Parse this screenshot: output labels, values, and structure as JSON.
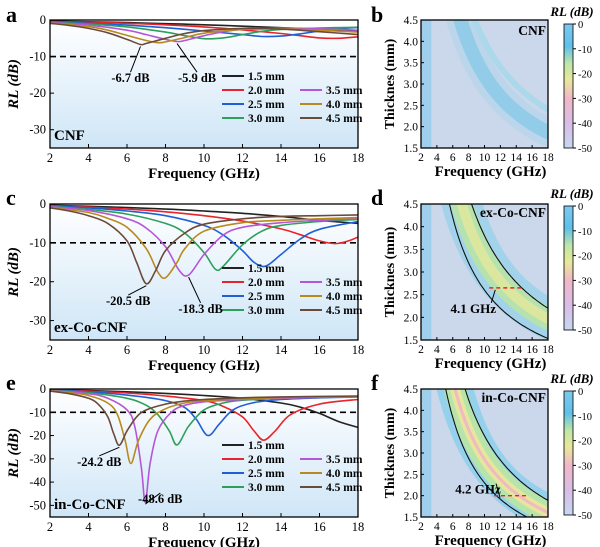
{
  "chart_data": [
    {
      "type": "line",
      "panel": "a",
      "label": "CNF",
      "xlabel": "Frequency (GHz)",
      "ylabel": "RL (dB)",
      "xlim": [
        2,
        18
      ],
      "ylim": [
        -35,
        0
      ],
      "xticks": [
        2,
        4,
        6,
        8,
        10,
        12,
        14,
        16,
        18
      ],
      "yticks": [
        0,
        -10,
        -20,
        -30
      ],
      "reference_line": -10,
      "annotations": [
        "-6.7 dB",
        "-5.9 dB"
      ],
      "legend": [
        "1.5 mm",
        "2.0 mm",
        "2.5 mm",
        "3.0 mm",
        "3.5 mm",
        "4.0 mm",
        "4.5 mm"
      ],
      "series": [
        {
          "name": "1.5 mm",
          "color": "#222222",
          "x": [
            2,
            4,
            6,
            8,
            10,
            12,
            14,
            16,
            17,
            18
          ],
          "y": [
            -0.3,
            -0.5,
            -0.7,
            -1.0,
            -1.3,
            -1.7,
            -2.1,
            -2.6,
            -2.9,
            -3.1
          ]
        },
        {
          "name": "2.0 mm",
          "color": "#e8242a",
          "x": [
            2,
            4,
            6,
            8,
            10,
            12,
            14,
            15,
            16,
            17,
            18
          ],
          "y": [
            -0.4,
            -0.6,
            -0.9,
            -1.3,
            -1.9,
            -2.7,
            -3.7,
            -4.3,
            -4.9,
            -5.0,
            -4.6
          ]
        },
        {
          "name": "2.5 mm",
          "color": "#1f5fd6",
          "x": [
            2,
            4,
            6,
            8,
            10,
            12,
            13,
            14,
            15,
            16,
            17,
            18
          ],
          "y": [
            -0.5,
            -0.9,
            -1.4,
            -2.1,
            -3.0,
            -4.0,
            -4.5,
            -4.4,
            -3.8,
            -3.0,
            -2.4,
            -2.0
          ]
        },
        {
          "name": "3.0 mm",
          "color": "#2ca05a",
          "x": [
            2,
            4,
            6,
            8,
            9,
            10,
            11,
            12,
            13,
            14,
            16,
            18
          ],
          "y": [
            -0.6,
            -1.1,
            -1.9,
            -3.3,
            -4.3,
            -5.1,
            -4.9,
            -4.0,
            -3.1,
            -2.6,
            -2.2,
            -2.0
          ]
        },
        {
          "name": "3.5 mm",
          "color": "#b556d6",
          "x": [
            2,
            4,
            6,
            7,
            8,
            8.6,
            9,
            10,
            11,
            12,
            14,
            16,
            18
          ],
          "y": [
            -0.7,
            -1.4,
            -2.8,
            -4.0,
            -5.3,
            -5.9,
            -5.6,
            -4.3,
            -3.2,
            -2.6,
            -2.2,
            -2.4,
            -2.8
          ]
        },
        {
          "name": "4.0 mm",
          "color": "#b88a1e",
          "x": [
            2,
            4,
            5,
            6,
            7,
            7.6,
            8,
            9,
            10,
            12,
            14,
            16,
            18
          ],
          "y": [
            -0.8,
            -1.8,
            -2.8,
            -4.2,
            -5.6,
            -6.2,
            -6.0,
            -4.8,
            -3.6,
            -2.6,
            -2.4,
            -2.8,
            -3.3
          ]
        },
        {
          "name": "4.5 mm",
          "color": "#6b4a3a",
          "x": [
            2,
            3,
            4,
            5,
            6,
            6.7,
            7,
            8,
            9,
            10,
            12,
            14,
            16,
            18
          ],
          "y": [
            -0.9,
            -1.5,
            -2.3,
            -3.5,
            -5.3,
            -6.7,
            -6.4,
            -5.0,
            -3.7,
            -2.9,
            -2.3,
            -2.5,
            -3.2,
            -4.0
          ]
        }
      ]
    },
    {
      "type": "heatmap",
      "panel": "b",
      "label": "CNF",
      "colorbar_title": "RL (dB)",
      "xlabel": "Frequency (GHz)",
      "ylabel": "Thicknes (mm)",
      "xlim": [
        2,
        18
      ],
      "ylim": [
        1.5,
        4.5
      ],
      "xticks": [
        2,
        4,
        6,
        8,
        10,
        12,
        14,
        16,
        18
      ],
      "yticks": [
        1.5,
        2.0,
        2.5,
        3.0,
        3.5,
        4.0,
        4.5
      ],
      "colorbar_ticks": [
        0,
        -10,
        -20,
        -30,
        -40,
        -50
      ]
    },
    {
      "type": "line",
      "panel": "c",
      "label": "ex-Co-CNF",
      "xlabel": "Frequency (GHz)",
      "ylabel": "RL (dB)",
      "xlim": [
        2,
        18
      ],
      "ylim": [
        -35,
        0
      ],
      "xticks": [
        2,
        4,
        6,
        8,
        10,
        12,
        14,
        16,
        18
      ],
      "yticks": [
        0,
        -10,
        -20,
        -30
      ],
      "reference_line": -10,
      "annotations": [
        "-20.5 dB",
        "-18.3 dB"
      ],
      "legend": [
        "1.5 mm",
        "2.0 mm",
        "2.5 mm",
        "3.0 mm",
        "3.5 mm",
        "4.0 mm",
        "4.5 mm"
      ],
      "series": [
        {
          "name": "1.5 mm",
          "color": "#222222",
          "x": [
            2,
            4,
            6,
            8,
            10,
            12,
            14,
            16,
            18
          ],
          "y": [
            -0.3,
            -0.6,
            -0.9,
            -1.3,
            -1.8,
            -2.4,
            -3.2,
            -4.2,
            -5.0
          ]
        },
        {
          "name": "2.0 mm",
          "color": "#e8242a",
          "x": [
            2,
            4,
            6,
            8,
            10,
            12,
            14,
            15,
            16,
            16.8,
            17.5,
            18
          ],
          "y": [
            -0.4,
            -0.8,
            -1.3,
            -2.0,
            -3.0,
            -4.4,
            -6.4,
            -7.9,
            -9.5,
            -10.2,
            -9.5,
            -8.5
          ]
        },
        {
          "name": "2.5 mm",
          "color": "#1f5fd6",
          "x": [
            2,
            4,
            6,
            8,
            10,
            11,
            12,
            12.6,
            13.2,
            14,
            15,
            16,
            18
          ],
          "y": [
            -0.5,
            -1.0,
            -1.8,
            -3.0,
            -5.5,
            -8.0,
            -12.0,
            -15.0,
            -16.0,
            -13.0,
            -9.0,
            -6.5,
            -4.5
          ]
        },
        {
          "name": "3.0 mm",
          "color": "#2ca05a",
          "x": [
            2,
            4,
            6,
            8,
            9,
            10,
            10.6,
            11,
            12,
            13,
            14,
            16,
            18
          ],
          "y": [
            -0.6,
            -1.4,
            -2.6,
            -5.0,
            -7.5,
            -12.5,
            -16.8,
            -16.0,
            -10.5,
            -7.0,
            -5.5,
            -4.5,
            -4.0
          ]
        },
        {
          "name": "3.5 mm",
          "color": "#b556d6",
          "x": [
            2,
            4,
            6,
            7,
            8,
            8.7,
            9.2,
            10,
            11,
            12,
            14,
            16,
            18
          ],
          "y": [
            -0.7,
            -1.7,
            -3.8,
            -6.2,
            -11.0,
            -17.0,
            -18.3,
            -13.0,
            -8.0,
            -6.0,
            -4.8,
            -4.2,
            -3.8
          ]
        },
        {
          "name": "4.0 mm",
          "color": "#b88a1e",
          "x": [
            2,
            4,
            5,
            6,
            7,
            7.6,
            8,
            8.6,
            9,
            10,
            12,
            14,
            16,
            18
          ],
          "y": [
            -0.9,
            -2.2,
            -3.7,
            -6.0,
            -11.5,
            -17.5,
            -19.0,
            -15.0,
            -11.5,
            -7.0,
            -4.8,
            -4.2,
            -3.8,
            -3.5
          ]
        },
        {
          "name": "4.5 mm",
          "color": "#6b4a3a",
          "x": [
            2,
            3,
            4,
            5,
            6,
            6.5,
            7,
            7.5,
            8,
            9,
            10,
            12,
            14,
            16,
            18
          ],
          "y": [
            -1.0,
            -1.8,
            -3.0,
            -5.0,
            -9.5,
            -15.0,
            -20.5,
            -17.0,
            -12.0,
            -7.5,
            -5.2,
            -3.8,
            -3.2,
            -3.0,
            -2.8
          ]
        }
      ]
    },
    {
      "type": "heatmap",
      "panel": "d",
      "label": "ex-Co-CNF",
      "colorbar_title": "RL (dB)",
      "xlabel": "Frequency (GHz)",
      "ylabel": "Thicknes (mm)",
      "xlim": [
        2,
        18
      ],
      "ylim": [
        1.5,
        4.5
      ],
      "xticks": [
        2,
        4,
        6,
        8,
        10,
        12,
        14,
        16,
        18
      ],
      "yticks": [
        1.5,
        2.0,
        2.5,
        3.0,
        3.5,
        4.0,
        4.5
      ],
      "colorbar_ticks": [
        0,
        -10,
        -20,
        -30,
        -40,
        -50
      ],
      "bandwidth_label": "4.1 GHz",
      "bandwidth_range_ghz": [
        10.6,
        14.7
      ],
      "bandwidth_thickness_mm": 2.65
    },
    {
      "type": "line",
      "panel": "e",
      "label": "in-Co-CNF",
      "xlabel": "Frequency (GHz)",
      "ylabel": "RL (dB)",
      "xlim": [
        2,
        18
      ],
      "ylim": [
        -55,
        0
      ],
      "xticks": [
        2,
        4,
        6,
        8,
        10,
        12,
        14,
        16,
        18
      ],
      "yticks": [
        0,
        -10,
        -20,
        -30,
        -40,
        -50
      ],
      "reference_line": -10,
      "annotations": [
        "-24.2 dB",
        "-48.6 dB"
      ],
      "legend": [
        "1.5 mm",
        "2.0 mm",
        "2.5 mm",
        "3.0 mm",
        "3.5 mm",
        "4.0 mm",
        "4.5 mm"
      ],
      "series": [
        {
          "name": "1.5 mm",
          "color": "#222222",
          "x": [
            2,
            4,
            6,
            8,
            10,
            12,
            14,
            15,
            16,
            17,
            18
          ],
          "y": [
            -0.3,
            -0.7,
            -1.2,
            -1.9,
            -2.8,
            -4.0,
            -6.0,
            -7.8,
            -10.5,
            -14.0,
            -16.5
          ]
        },
        {
          "name": "2.0 mm",
          "color": "#e8242a",
          "x": [
            2,
            4,
            6,
            8,
            10,
            11,
            12,
            12.6,
            13.1,
            13.7,
            14.5,
            16,
            18
          ],
          "y": [
            -0.4,
            -0.9,
            -1.7,
            -3.0,
            -5.0,
            -7.5,
            -12.0,
            -18.0,
            -22.0,
            -18.0,
            -11.0,
            -6.5,
            -4.5
          ]
        },
        {
          "name": "2.5 mm",
          "color": "#1f5fd6",
          "x": [
            2,
            4,
            6,
            8,
            9,
            9.6,
            10.2,
            10.8,
            11.5,
            12.5,
            14,
            16,
            18
          ],
          "y": [
            -0.5,
            -1.2,
            -2.6,
            -5.0,
            -8.0,
            -13.0,
            -20.0,
            -15.0,
            -9.0,
            -6.0,
            -4.5,
            -3.8,
            -3.4
          ]
        },
        {
          "name": "3.0 mm",
          "color": "#2ca05a",
          "x": [
            2,
            4,
            6,
            7,
            7.6,
            8.2,
            8.6,
            9.2,
            10,
            11,
            12,
            14,
            16,
            18
          ],
          "y": [
            -0.6,
            -1.6,
            -4.0,
            -7.0,
            -11.0,
            -18.0,
            -24.0,
            -16.0,
            -9.0,
            -6.0,
            -4.8,
            -4.0,
            -3.6,
            -3.3
          ]
        },
        {
          "name": "3.5 mm",
          "color": "#b556d6",
          "x": [
            2,
            4,
            5,
            6,
            6.4,
            6.75,
            6.95,
            7.2,
            7.6,
            8.3,
            9,
            10,
            12,
            14,
            16,
            18
          ],
          "y": [
            -0.7,
            -2.0,
            -4.0,
            -9.0,
            -16.0,
            -34.0,
            -48.6,
            -32.0,
            -18.0,
            -10.0,
            -7.0,
            -5.5,
            -4.5,
            -4.0,
            -3.6,
            -3.4
          ]
        },
        {
          "name": "4.0 mm",
          "color": "#b88a1e",
          "x": [
            2,
            3,
            4,
            5,
            5.5,
            5.9,
            6.2,
            6.6,
            7.2,
            8,
            9,
            10,
            12,
            14,
            16,
            18
          ],
          "y": [
            -0.8,
            -1.6,
            -2.8,
            -6.0,
            -11.0,
            -22.0,
            -32.0,
            -22.0,
            -13.0,
            -8.5,
            -6.0,
            -5.0,
            -4.2,
            -3.7,
            -3.4,
            -3.2
          ]
        },
        {
          "name": "4.5 mm",
          "color": "#6b4a3a",
          "x": [
            2,
            3,
            4,
            4.5,
            5,
            5.3,
            5.6,
            6,
            6.5,
            7,
            8,
            9,
            10,
            12,
            14,
            16,
            18
          ],
          "y": [
            -0.9,
            -2.0,
            -4.0,
            -6.5,
            -12.0,
            -19.0,
            -24.2,
            -18.0,
            -12.0,
            -9.0,
            -6.5,
            -5.2,
            -4.5,
            -3.8,
            -3.4,
            -3.2,
            -3.0
          ]
        }
      ]
    },
    {
      "type": "heatmap",
      "panel": "f",
      "label": "in-Co-CNF",
      "colorbar_title": "RL (dB)",
      "xlabel": "Frequency (GHz)",
      "ylabel": "Thicknes (mm)",
      "xlim": [
        2,
        18
      ],
      "ylim": [
        1.5,
        4.5
      ],
      "xticks": [
        2,
        4,
        6,
        8,
        10,
        12,
        14,
        16,
        18
      ],
      "yticks": [
        1.5,
        2.0,
        2.5,
        3.0,
        3.5,
        4.0,
        4.5
      ],
      "colorbar_ticks": [
        0,
        -10,
        -20,
        -30,
        -40,
        -50
      ],
      "bandwidth_label": "4.2 GHz",
      "bandwidth_range_ghz": [
        11.2,
        15.4
      ],
      "bandwidth_thickness_mm": 2.0
    }
  ]
}
